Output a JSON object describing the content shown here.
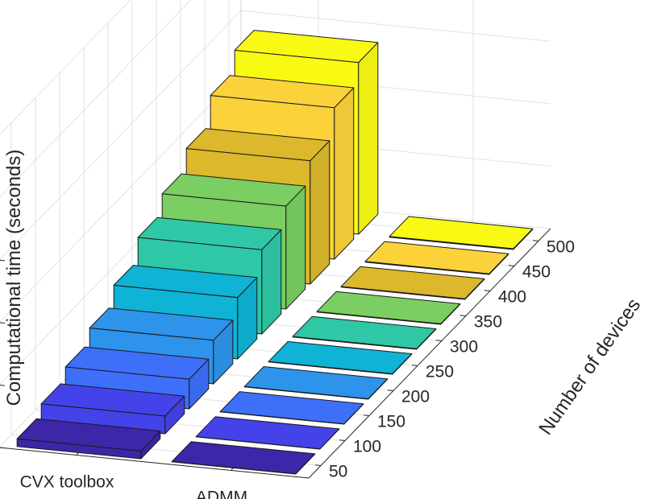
{
  "chart_data": {
    "type": "bar3d",
    "ylabel": "Computational time  (seconds)",
    "zlabel": "Number of devices",
    "methods": [
      "CVX toolbox",
      "ADMM"
    ],
    "devices": [
      50,
      100,
      150,
      200,
      250,
      300,
      350,
      400,
      450,
      500
    ],
    "zlim": [
      0,
      60
    ],
    "zticks": [
      0,
      20,
      40,
      60
    ],
    "series": [
      {
        "name": "CVX toolbox",
        "values": [
          2.5,
          5.7,
          9.5,
          14.0,
          19.7,
          27.0,
          33.0,
          39.5,
          48.5,
          55.0
        ]
      },
      {
        "name": "ADMM",
        "values": [
          0.07,
          0.09,
          0.11,
          0.13,
          0.15,
          0.17,
          0.19,
          0.21,
          0.23,
          0.25
        ]
      }
    ],
    "colors": [
      "#3d26a8",
      "#4443ea",
      "#3e6ff9",
      "#2e93eb",
      "#0fb3d5",
      "#2ec8a6",
      "#7ace62",
      "#dbb82c",
      "#fcd23a",
      "#f9fa14"
    ],
    "grid": true
  }
}
